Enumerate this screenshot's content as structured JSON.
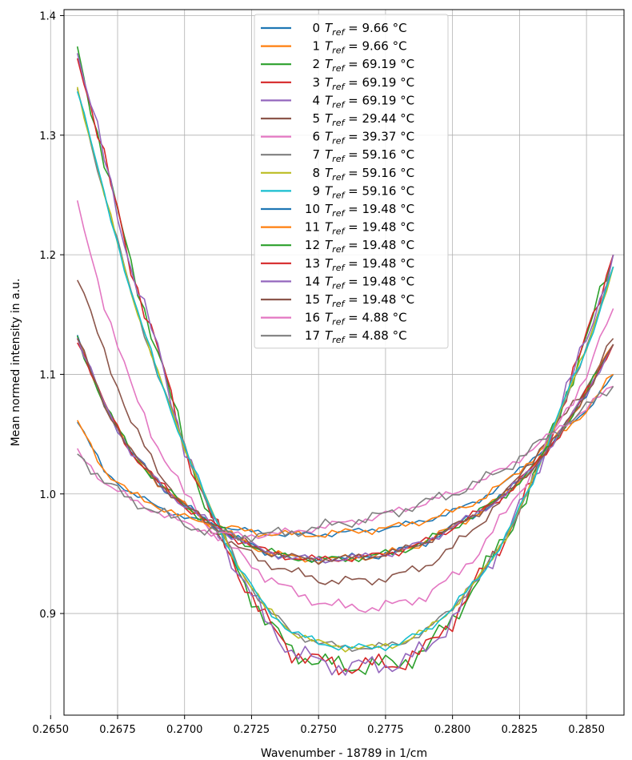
{
  "chart_data": {
    "type": "line",
    "xlabel": "Wavenumber - 18789 in 1/cm",
    "ylabel": "Mean normed intensity in a.u.",
    "xlim": [
      0.2655,
      0.2864
    ],
    "ylim": [
      0.815,
      1.405
    ],
    "xticks": [
      "0.2650",
      "0.2675",
      "0.2700",
      "0.2725",
      "0.2750",
      "0.2775",
      "0.2800",
      "0.2825",
      "0.2850"
    ],
    "xtick_values": [
      0.265,
      0.2675,
      0.27,
      0.2725,
      0.275,
      0.2775,
      0.28,
      0.2825,
      0.285
    ],
    "yticks": [
      "0.9",
      "1.0",
      "1.1",
      "1.2",
      "1.3",
      "1.4"
    ],
    "ytick_values": [
      0.9,
      1.0,
      1.1,
      1.2,
      1.3,
      1.4
    ],
    "grid": true,
    "legend_position": "top-center",
    "legend_unit": "°C",
    "curve_groups": {
      "hot": {
        "x": [
          0.266,
          0.267,
          0.268,
          0.269,
          0.27,
          0.271,
          0.272,
          0.273,
          0.274,
          0.275,
          0.276,
          0.277,
          0.278,
          0.279,
          0.28,
          0.281,
          0.282,
          0.283,
          0.284,
          0.285,
          0.286
        ],
        "y": [
          1.37,
          1.28,
          1.19,
          1.12,
          1.04,
          0.98,
          0.935,
          0.895,
          0.868,
          0.86,
          0.855,
          0.857,
          0.858,
          0.87,
          0.895,
          0.93,
          0.965,
          1.01,
          1.07,
          1.13,
          1.2
        ]
      },
      "mid": {
        "x": [
          0.266,
          0.267,
          0.268,
          0.269,
          0.27,
          0.271,
          0.272,
          0.273,
          0.274,
          0.275,
          0.276,
          0.277,
          0.278,
          0.279,
          0.28,
          0.281,
          0.282,
          0.283,
          0.284,
          0.285,
          0.286
        ],
        "y": [
          1.34,
          1.25,
          1.17,
          1.1,
          1.04,
          0.985,
          0.94,
          0.905,
          0.885,
          0.875,
          0.872,
          0.871,
          0.875,
          0.885,
          0.905,
          0.93,
          0.965,
          1.01,
          1.07,
          1.12,
          1.19
        ]
      },
      "cool": {
        "x": [
          0.266,
          0.267,
          0.268,
          0.269,
          0.27,
          0.271,
          0.272,
          0.273,
          0.274,
          0.275,
          0.276,
          0.277,
          0.278,
          0.279,
          0.28,
          0.281,
          0.282,
          0.283,
          0.284,
          0.285,
          0.286
        ],
        "y": [
          1.13,
          1.075,
          1.035,
          1.01,
          0.99,
          0.975,
          0.962,
          0.952,
          0.947,
          0.945,
          0.946,
          0.948,
          0.952,
          0.96,
          0.972,
          0.985,
          1.0,
          1.022,
          1.05,
          1.085,
          1.125
        ]
      },
      "t29": {
        "x": [
          0.266,
          0.267,
          0.268,
          0.269,
          0.27,
          0.271,
          0.272,
          0.273,
          0.274,
          0.275,
          0.276,
          0.277,
          0.278,
          0.279,
          0.28,
          0.281,
          0.282,
          0.283,
          0.284,
          0.285,
          0.286
        ],
        "y": [
          1.18,
          1.12,
          1.06,
          1.02,
          0.99,
          0.97,
          0.955,
          0.943,
          0.935,
          0.928,
          0.927,
          0.928,
          0.932,
          0.94,
          0.955,
          0.975,
          1.0,
          1.03,
          1.06,
          1.09,
          1.13
        ]
      },
      "t39": {
        "x": [
          0.266,
          0.267,
          0.268,
          0.269,
          0.27,
          0.271,
          0.272,
          0.273,
          0.274,
          0.275,
          0.276,
          0.277,
          0.278,
          0.279,
          0.28,
          0.281,
          0.282,
          0.283,
          0.284,
          0.285,
          0.286
        ],
        "y": [
          1.24,
          1.16,
          1.09,
          1.04,
          1.0,
          0.97,
          0.95,
          0.932,
          0.918,
          0.91,
          0.905,
          0.905,
          0.908,
          0.915,
          0.93,
          0.952,
          0.985,
          1.02,
          1.06,
          1.1,
          1.155
        ]
      },
      "cold": {
        "x": [
          0.266,
          0.267,
          0.268,
          0.269,
          0.27,
          0.271,
          0.272,
          0.273,
          0.274,
          0.275,
          0.276,
          0.277,
          0.278,
          0.279,
          0.28,
          0.281,
          0.282,
          0.283,
          0.284,
          0.285,
          0.286
        ],
        "y": [
          1.06,
          1.02,
          1.0,
          0.99,
          0.98,
          0.975,
          0.97,
          0.967,
          0.966,
          0.966,
          0.968,
          0.97,
          0.973,
          0.978,
          0.985,
          0.995,
          1.01,
          1.03,
          1.05,
          1.07,
          1.1
        ]
      },
      "cold4": {
        "x": [
          0.266,
          0.267,
          0.268,
          0.269,
          0.27,
          0.271,
          0.272,
          0.273,
          0.274,
          0.275,
          0.276,
          0.277,
          0.278,
          0.279,
          0.28,
          0.281,
          0.282,
          0.283,
          0.284,
          0.285,
          0.286
        ],
        "y": [
          1.035,
          1.01,
          0.995,
          0.985,
          0.975,
          0.968,
          0.965,
          0.966,
          0.968,
          0.972,
          0.976,
          0.98,
          0.986,
          0.993,
          1.0,
          1.01,
          1.022,
          1.038,
          1.055,
          1.072,
          1.09
        ]
      }
    },
    "series": [
      {
        "id": "0",
        "temp": "9.66",
        "color": "#1f77b4",
        "group": "cold",
        "jitter": 0.003
      },
      {
        "id": "1",
        "temp": "9.66",
        "color": "#ff7f0e",
        "group": "cold",
        "jitter": 0.004
      },
      {
        "id": "2",
        "temp": "69.19",
        "color": "#2ca02c",
        "group": "hot",
        "jitter": 0.01
      },
      {
        "id": "3",
        "temp": "69.19",
        "color": "#d62728",
        "group": "hot",
        "jitter": 0.01
      },
      {
        "id": "4",
        "temp": "69.19",
        "color": "#9467bd",
        "group": "hot",
        "jitter": 0.01
      },
      {
        "id": "5",
        "temp": "29.44",
        "color": "#8c564b",
        "group": "t29",
        "jitter": 0.005
      },
      {
        "id": "6",
        "temp": "39.37",
        "color": "#e377c2",
        "group": "t39",
        "jitter": 0.006
      },
      {
        "id": "7",
        "temp": "59.16",
        "color": "#7f7f7f",
        "group": "mid",
        "jitter": 0.004
      },
      {
        "id": "8",
        "temp": "59.16",
        "color": "#bcbd22",
        "group": "mid",
        "jitter": 0.004
      },
      {
        "id": "9",
        "temp": "59.16",
        "color": "#17becf",
        "group": "mid",
        "jitter": 0.004
      },
      {
        "id": "10",
        "temp": "19.48",
        "color": "#1f77b4",
        "group": "cool",
        "jitter": 0.004
      },
      {
        "id": "11",
        "temp": "19.48",
        "color": "#ff7f0e",
        "group": "cool",
        "jitter": 0.004
      },
      {
        "id": "12",
        "temp": "19.48",
        "color": "#2ca02c",
        "group": "cool",
        "jitter": 0.004
      },
      {
        "id": "13",
        "temp": "19.48",
        "color": "#d62728",
        "group": "cool",
        "jitter": 0.004
      },
      {
        "id": "14",
        "temp": "19.48",
        "color": "#9467bd",
        "group": "cool",
        "jitter": 0.004
      },
      {
        "id": "15",
        "temp": "19.48",
        "color": "#8c564b",
        "group": "cool",
        "jitter": 0.004
      },
      {
        "id": "16",
        "temp": "4.88",
        "color": "#e377c2",
        "group": "cold4",
        "jitter": 0.004
      },
      {
        "id": "17",
        "temp": "4.88",
        "color": "#7f7f7f",
        "group": "cold4",
        "jitter": 0.006
      }
    ]
  }
}
